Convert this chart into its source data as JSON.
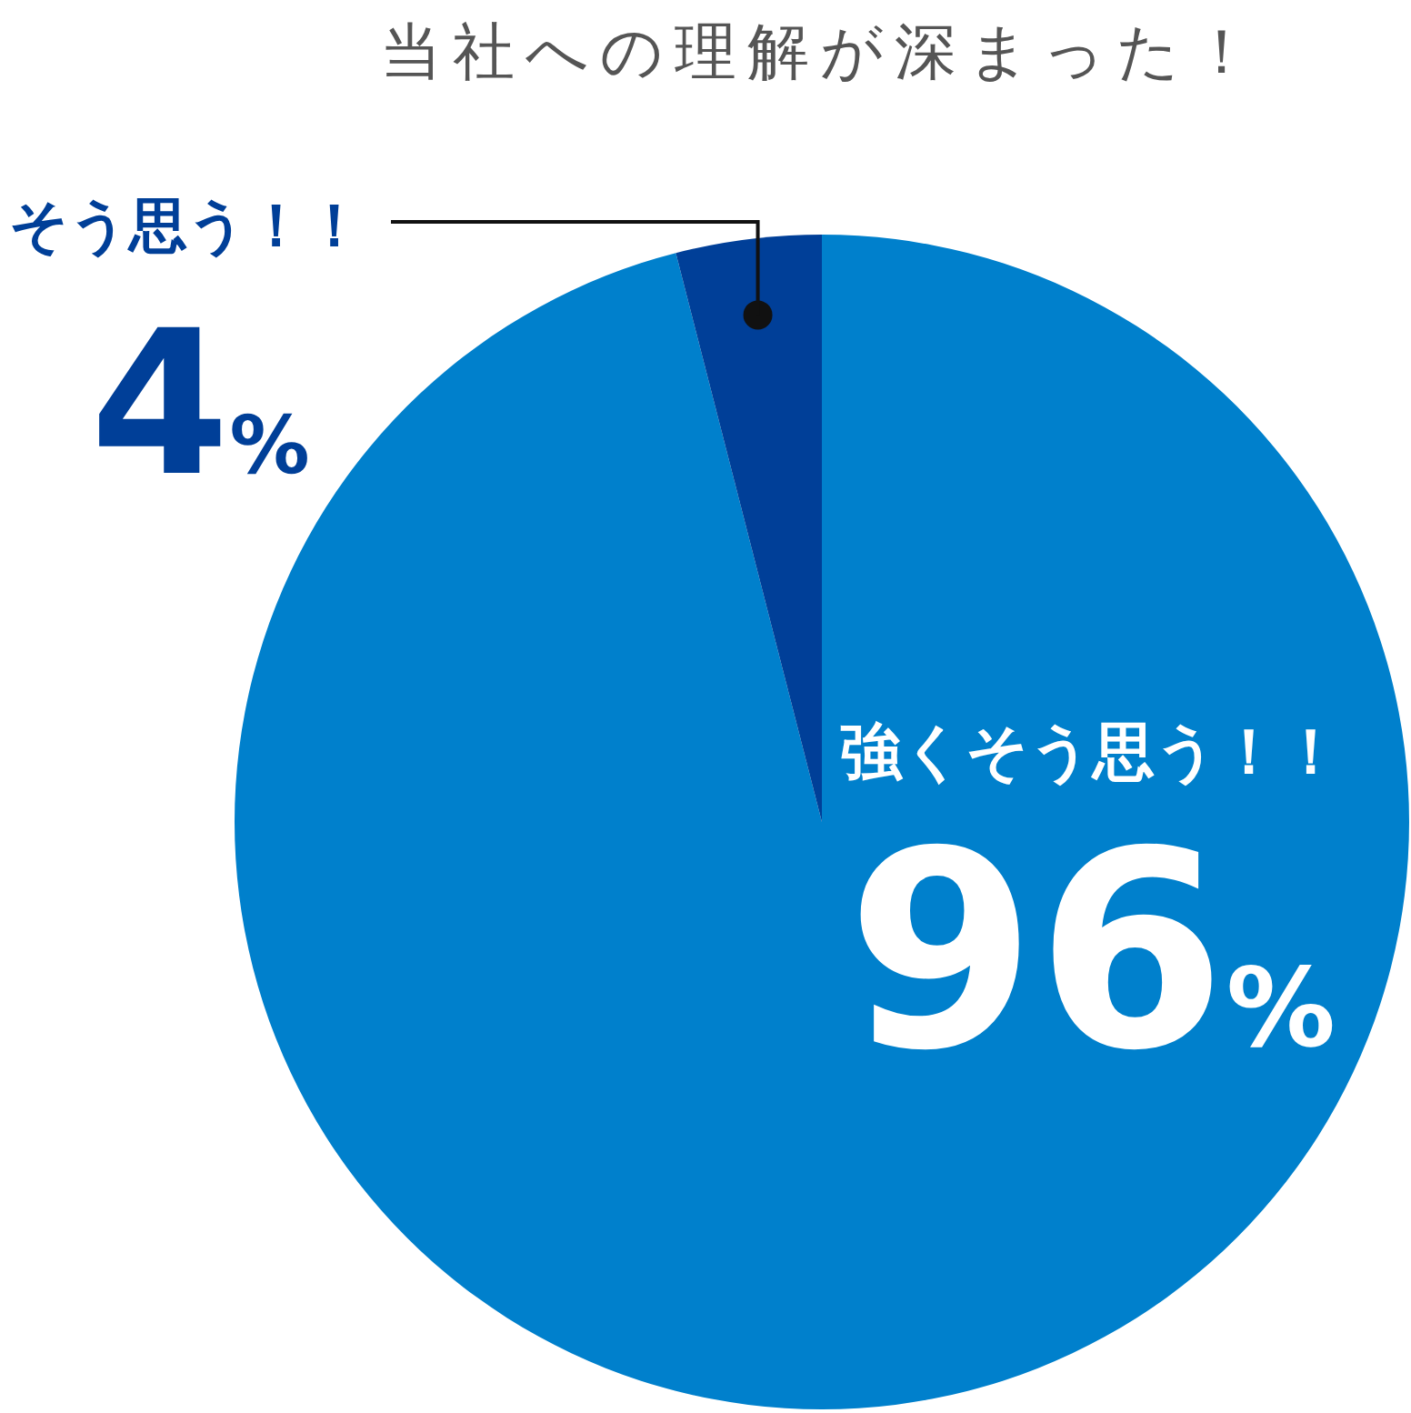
{
  "chart_data": {
    "type": "pie",
    "title": "当社への理解が深まった！",
    "categories": [
      "強くそう思う！！",
      "そう思う！！"
    ],
    "values": [
      96,
      4
    ],
    "colors": [
      "#0080cc",
      "#003f98"
    ],
    "value_labels": [
      "96%",
      "4%"
    ]
  }
}
